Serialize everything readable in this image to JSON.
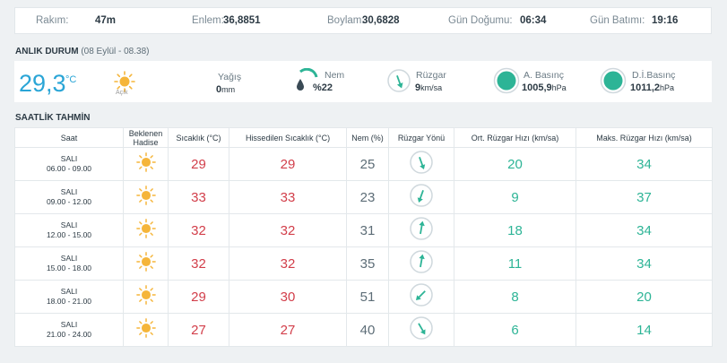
{
  "info_bar": {
    "altitude_label": "Rakım:",
    "altitude_value": "47m",
    "latitude_label": "Enlem:",
    "latitude_value": "36,8851",
    "longitude_label": "Boylam:",
    "longitude_value": "30,6828",
    "sunrise_label": "Gün Doğumu:",
    "sunrise_value": "06:34",
    "sunset_label": "Gün Batımı:",
    "sunset_value": "19:16"
  },
  "current": {
    "title": "ANLIK DURUM",
    "subtitle": "(08 Eylül - 08.38)",
    "temperature": "29,3",
    "temperature_unit": "°C",
    "condition": "Açık",
    "condition_icon": "sun-icon",
    "rain_label": "Yağış",
    "rain_value": "0",
    "rain_unit": "mm",
    "humidity_label": "Nem",
    "humidity_value": "%22",
    "wind_label": "Rüzgar",
    "wind_value": "9",
    "wind_unit": "km/sa",
    "pressure_label": "A. Basınç",
    "pressure_value": "1005,9",
    "pressure_unit": "hPa",
    "sea_pressure_label": "D.İ.Basınç",
    "sea_pressure_value": "1011,2",
    "sea_pressure_unit": "hPa",
    "accent_color": "#2aa5d6",
    "pressure_color": "#2db496"
  },
  "hourly": {
    "title": "SAATLİK TAHMİN",
    "headers": {
      "time": "Saat",
      "event_1": "Beklenen",
      "event_2": "Hadise",
      "temp": "Sıcaklık (°C)",
      "feels": "Hissedilen Sıcaklık (°C)",
      "humidity": "Nem (%)",
      "wind_dir": "Rüzgar Yönü",
      "avg_wind": "Ort. Rüzgar Hızı (km/sa)",
      "max_wind": "Maks. Rüzgar Hızı (km/sa)"
    },
    "rows": [
      {
        "day": "SALI",
        "range": "06.00 - 09.00",
        "icon": "sun-icon",
        "temp": "29",
        "feels": "29",
        "humidity": "25",
        "wind_deg": 160,
        "avg": "20",
        "max": "34"
      },
      {
        "day": "SALI",
        "range": "09.00 - 12.00",
        "icon": "sun-icon",
        "temp": "33",
        "feels": "33",
        "humidity": "23",
        "wind_deg": 200,
        "avg": "9",
        "max": "37"
      },
      {
        "day": "SALI",
        "range": "12.00 - 15.00",
        "icon": "sun-icon",
        "temp": "32",
        "feels": "32",
        "humidity": "31",
        "wind_deg": 10,
        "avg": "18",
        "max": "34"
      },
      {
        "day": "SALI",
        "range": "15.00 - 18.00",
        "icon": "sun-icon",
        "temp": "32",
        "feels": "32",
        "humidity": "35",
        "wind_deg": 10,
        "avg": "11",
        "max": "34"
      },
      {
        "day": "SALI",
        "range": "18.00 - 21.00",
        "icon": "sun-icon",
        "temp": "29",
        "feels": "30",
        "humidity": "51",
        "wind_deg": 225,
        "avg": "8",
        "max": "20"
      },
      {
        "day": "SALI",
        "range": "21.00 - 24.00",
        "icon": "sun-icon",
        "temp": "27",
        "feels": "27",
        "humidity": "40",
        "wind_deg": 150,
        "avg": "6",
        "max": "14"
      }
    ]
  },
  "colors": {
    "temp_red": "#d23e4a",
    "wind_green": "#2db496",
    "sun_yellow": "#f5b53a"
  }
}
